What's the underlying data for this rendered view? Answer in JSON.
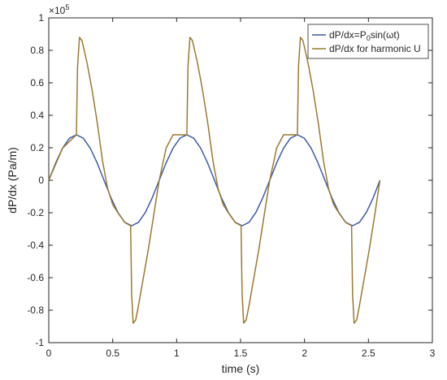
{
  "chart_data": {
    "type": "line",
    "title": "",
    "xlabel": "time (s)",
    "ylabel": "dP/dx (Pa/m)",
    "y_exponent_label": "×10",
    "y_exponent_power": "5",
    "xlim": [
      0,
      3
    ],
    "ylim": [
      -1,
      1
    ],
    "y_scale_factor": 100000,
    "xticks": [
      "0",
      "0.5",
      "1",
      "1.5",
      "2",
      "2.5",
      "3"
    ],
    "xtick_values": [
      0,
      0.5,
      1,
      1.5,
      2,
      2.5,
      3
    ],
    "yticks": [
      "-1",
      "-0.8",
      "-0.6",
      "-0.4",
      "-0.2",
      "0",
      "0.2",
      "0.4",
      "0.6",
      "0.8",
      "1"
    ],
    "ytick_values": [
      -1,
      -0.8,
      -0.6,
      -0.4,
      -0.2,
      0,
      0.2,
      0.4,
      0.6,
      0.8,
      1
    ],
    "grid": false,
    "legend_position": "top-right",
    "series": [
      {
        "name_main": "dP/dx=P",
        "name_sub": "0",
        "name_rest": "sin(ωt)",
        "color": "#3e5aa8",
        "x": [
          0,
          0.054,
          0.108,
          0.162,
          0.216,
          0.27,
          0.324,
          0.378,
          0.432,
          0.486,
          0.54,
          0.594,
          0.648,
          0.702,
          0.756,
          0.81,
          0.864,
          0.918,
          0.972,
          1.026,
          1.08,
          1.134,
          1.188,
          1.242,
          1.296,
          1.35,
          1.404,
          1.458,
          1.512,
          1.566,
          1.62,
          1.674,
          1.728,
          1.782,
          1.836,
          1.89,
          1.944,
          1.998,
          2.052,
          2.106,
          2.16,
          2.214,
          2.268,
          2.322,
          2.376,
          2.43,
          2.484,
          2.538,
          2.59
        ],
        "y": [
          0,
          0.107,
          0.198,
          0.259,
          0.28,
          0.259,
          0.198,
          0.107,
          0,
          -0.107,
          -0.198,
          -0.259,
          -0.28,
          -0.259,
          -0.198,
          -0.107,
          0,
          0.107,
          0.198,
          0.259,
          0.28,
          0.259,
          0.198,
          0.107,
          0,
          -0.107,
          -0.198,
          -0.259,
          -0.28,
          -0.259,
          -0.198,
          -0.107,
          0,
          0.107,
          0.198,
          0.259,
          0.28,
          0.259,
          0.198,
          0.107,
          0,
          -0.107,
          -0.198,
          -0.259,
          -0.28,
          -0.259,
          -0.198,
          -0.107,
          0
        ]
      },
      {
        "name": "dP/dx for harmonic U",
        "color": "#9b7a2f",
        "x": [
          0,
          0.108,
          0.216,
          0.225,
          0.24,
          0.26,
          0.3,
          0.34,
          0.38,
          0.42,
          0.46,
          0.5,
          0.54,
          0.594,
          0.64,
          0.648,
          0.66,
          0.68,
          0.7,
          0.74,
          0.78,
          0.82,
          0.864,
          0.918,
          0.972,
          1.026,
          1.08,
          1.089,
          1.104,
          1.124,
          1.164,
          1.204,
          1.244,
          1.284,
          1.324,
          1.364,
          1.404,
          1.458,
          1.504,
          1.512,
          1.524,
          1.544,
          1.564,
          1.604,
          1.644,
          1.684,
          1.728,
          1.782,
          1.836,
          1.89,
          1.944,
          1.953,
          1.968,
          1.988,
          2.028,
          2.068,
          2.108,
          2.148,
          2.188,
          2.228,
          2.268,
          2.322,
          2.368,
          2.376,
          2.388,
          2.408,
          2.428,
          2.468,
          2.508,
          2.548,
          2.59
        ],
        "y": [
          0,
          0.198,
          0.28,
          0.7,
          0.88,
          0.86,
          0.72,
          0.55,
          0.35,
          0.12,
          -0.05,
          -0.15,
          -0.2,
          -0.26,
          -0.28,
          -0.7,
          -0.88,
          -0.86,
          -0.78,
          -0.6,
          -0.42,
          -0.22,
          0,
          0.198,
          0.28,
          0.28,
          0.28,
          0.7,
          0.88,
          0.86,
          0.72,
          0.55,
          0.35,
          0.12,
          -0.05,
          -0.15,
          -0.2,
          -0.26,
          -0.28,
          -0.7,
          -0.88,
          -0.86,
          -0.78,
          -0.6,
          -0.42,
          -0.22,
          0,
          0.198,
          0.28,
          0.28,
          0.28,
          0.7,
          0.88,
          0.86,
          0.72,
          0.55,
          0.35,
          0.12,
          -0.05,
          -0.15,
          -0.2,
          -0.26,
          -0.28,
          -0.7,
          -0.88,
          -0.86,
          -0.78,
          -0.6,
          -0.42,
          -0.22,
          0
        ]
      }
    ]
  }
}
